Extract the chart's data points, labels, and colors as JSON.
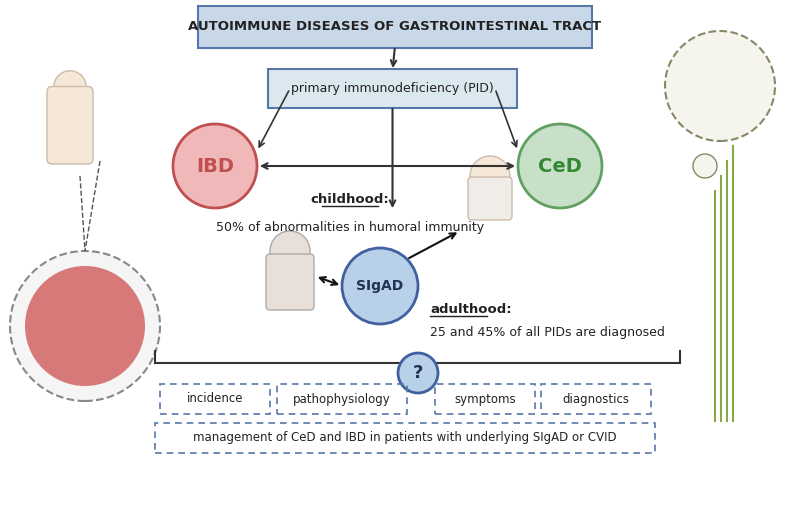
{
  "title": "AUTOIMMUNE DISEASES OF GASTROINTESTINAL TRACT",
  "title_box_color": "#c8d8e8",
  "title_box_edge": "#5577aa",
  "pid_label": "primary immunodeficiency (PID)",
  "pid_box_color": "#dce8f0",
  "pid_box_edge": "#5577aa",
  "ibd_label": "IBD",
  "ibd_color": "#f0b8b8",
  "ibd_edge": "#c05050",
  "ced_label": "CeD",
  "ced_color": "#c8e0c8",
  "ced_edge": "#60a060",
  "sigad_label": "SIgAD",
  "sigad_color": "#b8d0e8",
  "sigad_edge": "#4060a0",
  "childhood_label": "childhood:",
  "childhood_text": "50% of abnormalities in humoral immunity",
  "adulthood_label": "adulthood:",
  "adulthood_text": "25 and 45% of all PIDs are diagnosed",
  "bottom_labels": [
    "incidence",
    "pathophysiology",
    "symptoms",
    "diagnostics"
  ],
  "bottom_text": "management of CeD and IBD in patients with underlying SIgAD or CVID",
  "question_mark": "?",
  "bg_color": "#ffffff"
}
